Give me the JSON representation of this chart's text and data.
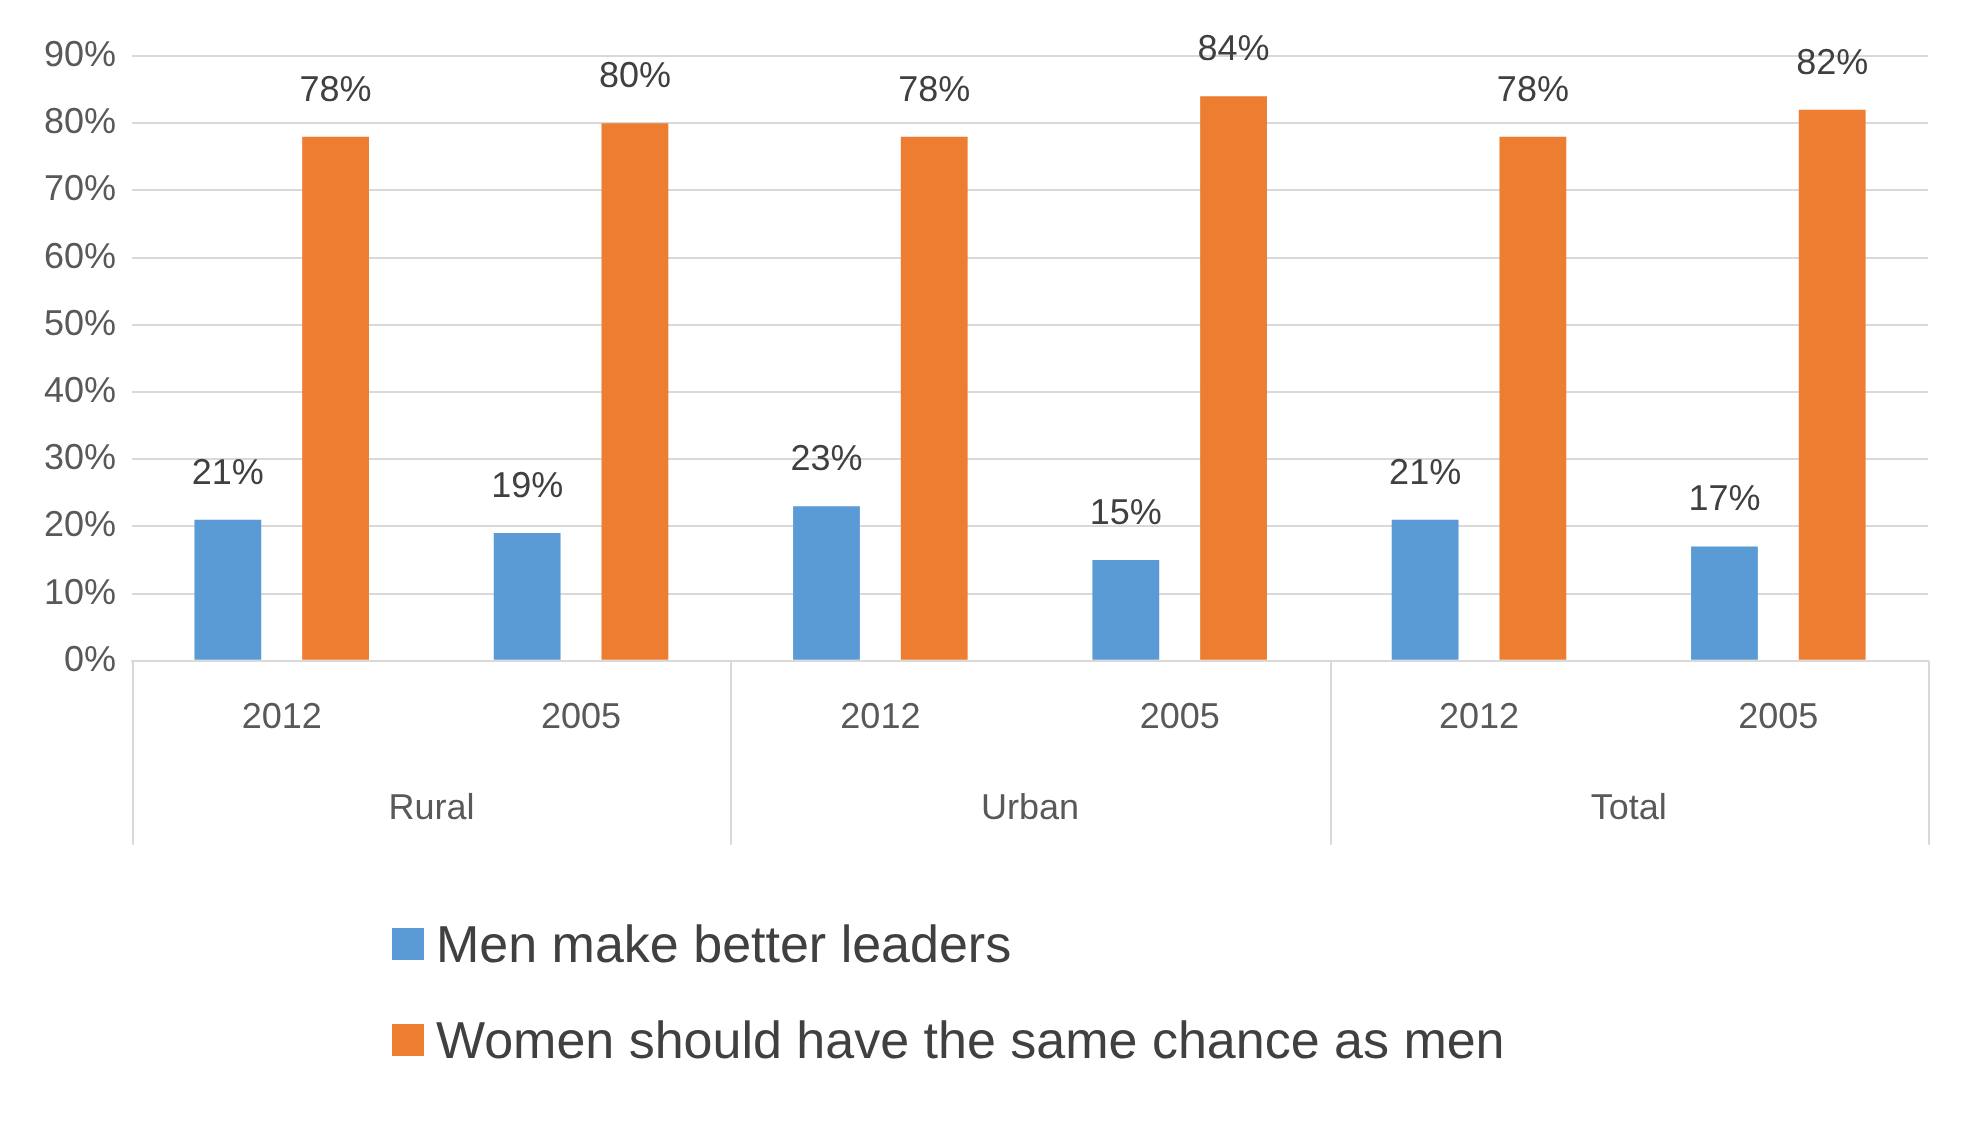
{
  "chart_data": {
    "type": "bar",
    "categories": [
      "2012",
      "2005",
      "2012",
      "2005",
      "2012",
      "2005"
    ],
    "annotations": [
      "Rural",
      "Urban",
      "Total"
    ],
    "series": [
      {
        "name": "Men make better leaders",
        "color": "#5b9bd5",
        "values": [
          21,
          19,
          23,
          15,
          21,
          17
        ],
        "value_labels": [
          "21%",
          "19%",
          "23%",
          "15%",
          "21%",
          "17%"
        ]
      },
      {
        "name": "Women should have the same chance as men",
        "color": "#ed7d31",
        "values": [
          78,
          80,
          78,
          84,
          78,
          82
        ],
        "value_labels": [
          "78%",
          "80%",
          "78%",
          "84%",
          "78%",
          "82%"
        ]
      }
    ],
    "ylim": [
      0,
      90
    ],
    "yticks": [
      {
        "value": 0,
        "label": "0%"
      },
      {
        "value": 10,
        "label": "10%"
      },
      {
        "value": 20,
        "label": "20%"
      },
      {
        "value": 30,
        "label": "30%"
      },
      {
        "value": 40,
        "label": "40%"
      },
      {
        "value": 50,
        "label": "50%"
      },
      {
        "value": 60,
        "label": "60%"
      },
      {
        "value": 70,
        "label": "70%"
      },
      {
        "value": 80,
        "label": "80%"
      },
      {
        "value": 90,
        "label": "90%"
      }
    ],
    "grid": "y",
    "legend": "bottom"
  }
}
